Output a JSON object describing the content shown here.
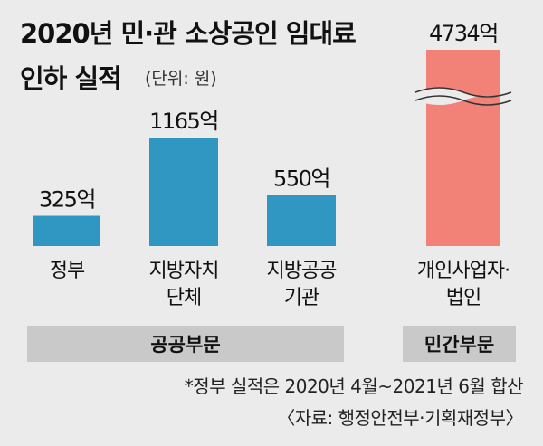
{
  "title": {
    "line1": "2020년 민·관 소상공인 임대료",
    "line2": "인하 실적",
    "unit": "(단위: 원)"
  },
  "colors": {
    "background": "#ebebeb",
    "public_bar": "#2f97c1",
    "private_bar": "#f28278",
    "band": "#c9c9c9"
  },
  "chart_data": {
    "type": "bar",
    "unit": "억",
    "categories": [
      "정부",
      "지방자치 단체",
      "지방공공 기관",
      "개인사업자· 법인"
    ],
    "category_lines": [
      [
        "정부"
      ],
      [
        "지방자치",
        "단체"
      ],
      [
        "지방공공",
        "기관"
      ],
      [
        "개인사업자·",
        "법인"
      ]
    ],
    "values": [
      325,
      1165,
      550,
      4734
    ],
    "value_labels": [
      "325억",
      "1165억",
      "550억",
      "4734억"
    ],
    "groups": [
      {
        "label": "공공부문",
        "members": [
          0,
          1,
          2
        ]
      },
      {
        "label": "민간부문",
        "members": [
          3
        ]
      }
    ],
    "broken_axis": [
      3
    ]
  },
  "footnotes": [
    "*정부 실적은 2020년 4월~2021년 6월 합산",
    "〈자료: 행정안전부·기획재정부〉"
  ]
}
